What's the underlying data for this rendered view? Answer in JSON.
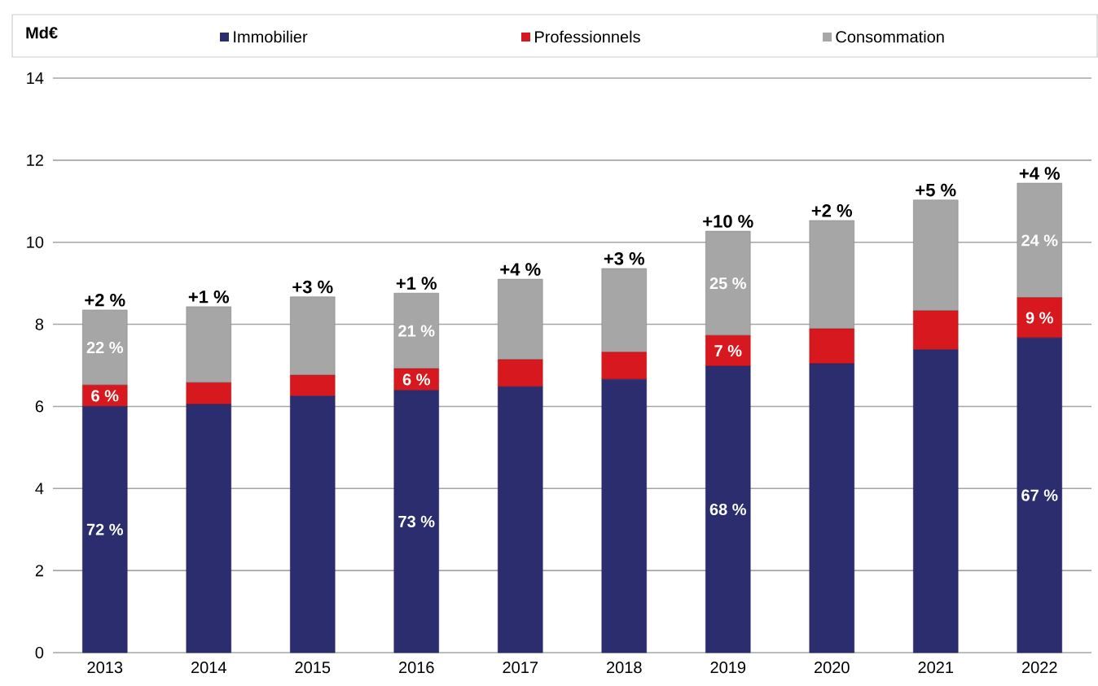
{
  "chart_data": {
    "type": "bar",
    "stacked": true,
    "ylabel": "Md€",
    "categories": [
      "2013",
      "2014",
      "2015",
      "2016",
      "2017",
      "2018",
      "2019",
      "2020",
      "2021",
      "2022"
    ],
    "series": [
      {
        "name": "Immobilier",
        "color": "#2b2d6e",
        "values": [
          6.0,
          6.05,
          6.25,
          6.39,
          6.48,
          6.66,
          6.98,
          7.04,
          7.38,
          7.67
        ]
      },
      {
        "name": "Professionnels",
        "color": "#d7191f",
        "values": [
          0.52,
          0.53,
          0.51,
          0.53,
          0.66,
          0.66,
          0.75,
          0.85,
          0.95,
          0.98
        ]
      },
      {
        "name": "Consommation",
        "color": "#a6a6a6",
        "values": [
          1.83,
          1.85,
          1.91,
          1.84,
          1.96,
          2.04,
          2.54,
          2.64,
          2.7,
          2.79
        ]
      }
    ],
    "annotations": [
      "72 %",
      "6 %",
      "22 %",
      "73 %",
      "6 %",
      "21 %",
      "68 %",
      "7 %",
      "25 %",
      "67 %",
      "9 %",
      "24 %",
      {
        "text": "+2 %",
        "x": "2013",
        "y": 8.35
      },
      {
        "text": "+1 %",
        "x": "2014",
        "y": 8.43
      },
      {
        "text": "+3 %",
        "x": "2015",
        "y": 8.67
      },
      {
        "text": "+1 %",
        "x": "2016",
        "y": 8.76
      },
      {
        "text": "+4 %",
        "x": "2017",
        "y": 9.1
      },
      {
        "text": "+3 %",
        "x": "2018",
        "y": 9.36
      },
      {
        "text": "+10 %",
        "x": "2019",
        "y": 10.27
      },
      {
        "text": "+2 %",
        "x": "2020",
        "y": 10.53
      },
      {
        "text": "+5 %",
        "x": "2021",
        "y": 11.03
      },
      {
        "text": "+4 %",
        "x": "2022",
        "y": 11.44
      }
    ],
    "ylim": [
      0,
      14
    ],
    "yticks": [
      0,
      2,
      4,
      6,
      8,
      10,
      12,
      14
    ],
    "grid": "y",
    "legend": "top"
  }
}
